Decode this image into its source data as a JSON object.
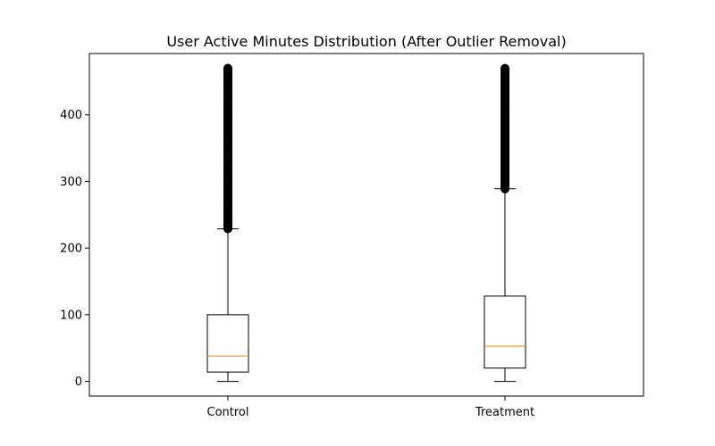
{
  "chart_data": {
    "type": "box",
    "title": "User Active Minutes Distribution (After Outlier Removal)",
    "xlabel": "",
    "ylabel": "",
    "ylim": [
      -22,
      492
    ],
    "yticks": [
      0,
      100,
      200,
      300,
      400
    ],
    "grid": false,
    "legend": "none",
    "categories": [
      "Control",
      "Treatment"
    ],
    "boxes": [
      {
        "label": "Control",
        "whisker_low": 0,
        "q1": 14,
        "median": 38,
        "q3": 100,
        "whisker_high": 229,
        "outliers_from": 229,
        "outliers_to": 470
      },
      {
        "label": "Treatment",
        "whisker_low": 0,
        "q1": 20,
        "median": 53,
        "q3": 128,
        "whisker_high": 289,
        "outliers_from": 289,
        "outliers_to": 470
      }
    ],
    "colors": {
      "box": "#000000",
      "median": "#ff7f0e",
      "outlier": "#000000"
    }
  }
}
